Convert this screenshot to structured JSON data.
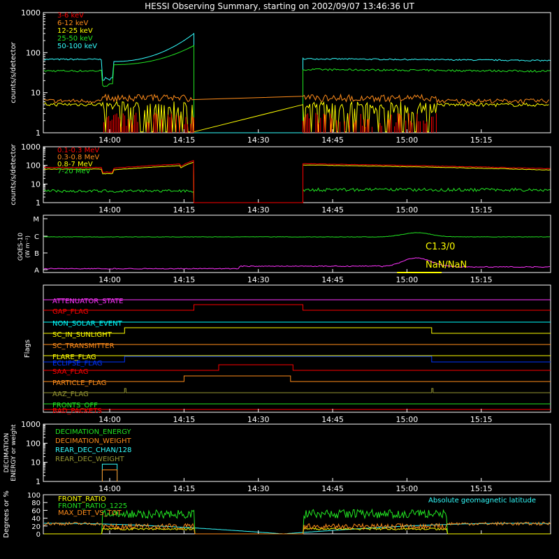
{
  "title": "HESSI Observing Summary, starting on 2002/09/07 13:46:36 UT",
  "time_ticks": [
    "14:00",
    "14:15",
    "14:30",
    "14:45",
    "15:00",
    "15:15"
  ],
  "colors": {
    "red": "#ff0000",
    "orange": "#ff8c1a",
    "yellow": "#ffff00",
    "green": "#22e622",
    "cyan": "#33ffff",
    "magenta": "#ff33ff",
    "teal": "#00ffff",
    "blue": "#0033ff",
    "olive": "#999933",
    "white": "#ffffff"
  },
  "chart_data": [
    {
      "id": "panel1",
      "type": "line",
      "ylabel": "counts/s/detector",
      "yscale": "log",
      "ylim": [
        1,
        1000
      ],
      "yticks": [
        "1",
        "10",
        "100",
        "1000"
      ],
      "series": [
        {
          "name": "3-6 keV",
          "color": "red"
        },
        {
          "name": "6-12 keV",
          "color": "orange"
        },
        {
          "name": "12-25 keV",
          "color": "yellow"
        },
        {
          "name": "25-50 keV",
          "color": "green"
        },
        {
          "name": "50-100 keV",
          "color": "cyan"
        }
      ]
    },
    {
      "id": "panel2",
      "type": "line",
      "ylabel": "counts/s/detector",
      "yscale": "log",
      "ylim": [
        1,
        1000
      ],
      "yticks": [
        "1",
        "10",
        "100",
        "1000"
      ],
      "series": [
        {
          "name": "0.1-0.3 MeV",
          "color": "red"
        },
        {
          "name": "0.3-0.8 MeV",
          "color": "orange"
        },
        {
          "name": "0.8-7 MeV",
          "color": "yellow"
        },
        {
          "name": "7-20 MeV",
          "color": "green"
        }
      ]
    },
    {
      "id": "panel3",
      "type": "line",
      "ylabel": "GOES-10",
      "ylabel2": "(W m⁻²)",
      "yticks": [
        "A",
        "B",
        "C",
        "M"
      ],
      "annotations": [
        "C1.3/0",
        "NaN/NaN"
      ]
    },
    {
      "id": "panel4",
      "type": "line",
      "ylabel": "Flags",
      "flags": [
        {
          "name": "ATTENUATOR_STATE",
          "color": "magenta"
        },
        {
          "name": "GAP_FLAG",
          "color": "red"
        },
        {
          "name": "NON_SOLAR_EVENT",
          "color": "teal"
        },
        {
          "name": "SC_IN_SUNLIGHT",
          "color": "yellow"
        },
        {
          "name": "SC_TRANSMITTER",
          "color": "orange"
        },
        {
          "name": "FLARE_FLAG",
          "color": "yellow"
        },
        {
          "name": "ECLIPSE_FLAG",
          "color": "blue"
        },
        {
          "name": "SAA_FLAG",
          "color": "red"
        },
        {
          "name": "PARTICLE_FLAG",
          "color": "orange"
        },
        {
          "name": "AAZ_FLAG",
          "color": "olive"
        },
        {
          "name": "FRONTS_OFF",
          "color": "green"
        },
        {
          "name": "BAD_PACKETS",
          "color": "red"
        }
      ]
    },
    {
      "id": "panel5",
      "type": "line",
      "ylabel": "DECIMATION",
      "ylabel2": "ENERGY or weight",
      "yticks": [
        "1",
        "10",
        "100",
        "1000"
      ],
      "series": [
        {
          "name": "DECIMATION_ENERGY",
          "color": "green"
        },
        {
          "name": "DECIMATION_WEIGHT",
          "color": "orange"
        },
        {
          "name": "REAR_DEC_CHAN/128",
          "color": "cyan"
        },
        {
          "name": "REAR_DEC_WEIGHT",
          "color": "olive"
        }
      ]
    },
    {
      "id": "panel6",
      "type": "line",
      "ylabel": "Degrees or %",
      "ylim": [
        0,
        100
      ],
      "yticks": [
        "0",
        "20",
        "40",
        "60",
        "80",
        "100"
      ],
      "series": [
        {
          "name": "FRONT_RATIO",
          "color": "yellow"
        },
        {
          "name": "FRONT_RATIO_1225",
          "color": "green"
        },
        {
          "name": "MAX_DET_VS_TOT",
          "color": "orange"
        }
      ],
      "note": "Absolute geomagnetic latitude"
    }
  ]
}
